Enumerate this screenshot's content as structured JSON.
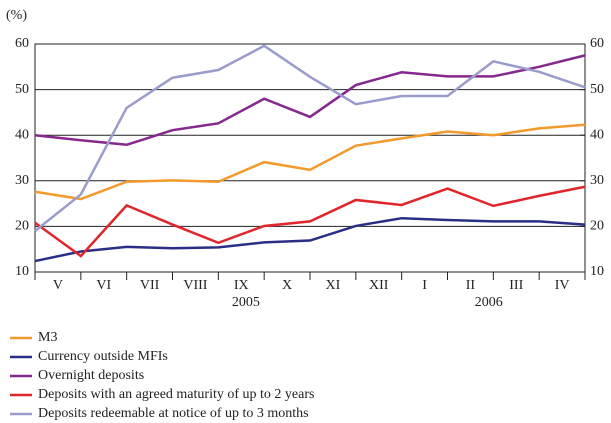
{
  "chart_data": {
    "type": "line",
    "unit_label": "(%)",
    "x": [
      0,
      1,
      2,
      3,
      4,
      5,
      6,
      7,
      8,
      9,
      10,
      11,
      12
    ],
    "xlim": [
      0,
      12
    ],
    "xticks": [
      {
        "value": 0.5,
        "label": "V"
      },
      {
        "value": 1.5,
        "label": "VI"
      },
      {
        "value": 2.5,
        "label": "VII"
      },
      {
        "value": 3.5,
        "label": "VIII"
      },
      {
        "value": 4.5,
        "label": "IX"
      },
      {
        "value": 5.5,
        "label": "X"
      },
      {
        "value": 6.5,
        "label": "XI"
      },
      {
        "value": 7.5,
        "label": "XII"
      },
      {
        "value": 8.5,
        "label": "I"
      },
      {
        "value": 9.5,
        "label": "II"
      },
      {
        "value": 10.5,
        "label": "III"
      },
      {
        "value": 11.5,
        "label": "IV"
      }
    ],
    "year_labels": [
      {
        "value": 4.6,
        "label": "2005"
      },
      {
        "value": 9.9,
        "label": "2006"
      }
    ],
    "ylim": [
      10,
      60
    ],
    "yticks": [
      10,
      20,
      30,
      40,
      50,
      60
    ],
    "y2lim": [
      10,
      60
    ],
    "y2ticks": [
      10,
      20,
      30,
      40,
      50,
      60
    ],
    "grid": true,
    "series": [
      {
        "name": "M3",
        "color": "#f29a2e",
        "values": [
          27.6,
          26.0,
          29.8,
          30.1,
          29.8,
          34.1,
          32.4,
          37.7,
          39.3,
          40.8,
          40.0,
          41.5,
          42.3
        ]
      },
      {
        "name": "Currency outside MFIs",
        "color": "#2a2f86",
        "values": [
          12.4,
          14.5,
          15.5,
          15.2,
          15.4,
          16.5,
          16.9,
          20.1,
          21.8,
          21.4,
          21.1,
          21.1,
          20.4
        ]
      },
      {
        "name": "Overnight deposits",
        "color": "#86288e",
        "values": [
          40.0,
          38.9,
          37.9,
          41.1,
          42.6,
          48.0,
          44.0,
          51.0,
          53.8,
          52.9,
          52.9,
          55.0,
          57.5
        ]
      },
      {
        "name": "Deposits with an agreed maturity of up to 2 years",
        "color": "#e0262b",
        "values": [
          20.8,
          13.5,
          24.6,
          20.4,
          16.4,
          20.1,
          21.1,
          25.8,
          24.7,
          28.3,
          24.5,
          26.7,
          28.7
        ]
      },
      {
        "name": "Deposits redeemable at notice of up to 3 months",
        "color": "#9a9ccc",
        "values": [
          19.0,
          27.0,
          46.0,
          52.6,
          54.3,
          59.6,
          52.8,
          46.8,
          48.6,
          48.6,
          56.2,
          53.9,
          50.5
        ]
      }
    ]
  }
}
